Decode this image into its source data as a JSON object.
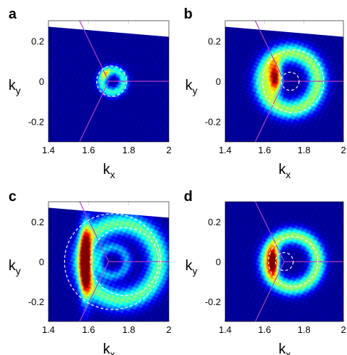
{
  "colors": {
    "background_low": "#00008f",
    "colormap": [
      "#00008f",
      "#0000ff",
      "#0080ff",
      "#00ffff",
      "#80ff80",
      "#ffff00",
      "#ff8000",
      "#ff0000",
      "#800000"
    ],
    "zone_boundary_line": "#b040c0",
    "dashed_circle": "#ffffff",
    "dotted_grid": "#777777"
  },
  "chart_data": [
    {
      "panel": "a",
      "type": "heatmap",
      "xlabel": "k",
      "xlabel_sub": "x",
      "ylabel": "k",
      "ylabel_sub": "y",
      "xlim": [
        1.4,
        2
      ],
      "ylim": [
        -0.3,
        0.3
      ],
      "xticks": [
        "1.4",
        "1.6",
        "1.8",
        "2"
      ],
      "yticks": [
        "0.2",
        "0",
        "-0.2"
      ],
      "zone_boundary_center": [
        1.7,
        0
      ],
      "masked_corner": {
        "left_y": 0.27,
        "right_y": 0.22
      },
      "intensity_features": [
        {
          "kind": "ring",
          "cx": 1.72,
          "cy": 0.0,
          "r": 0.055,
          "width": 0.018,
          "amplitude": 0.45
        },
        {
          "kind": "spot",
          "cx": 1.685,
          "cy": 0.035,
          "sx": 0.015,
          "sy": 0.02,
          "amplitude": 0.3
        }
      ],
      "dashed_circles": [
        {
          "cx": 1.715,
          "cy": 0.0,
          "r": 0.075
        }
      ]
    },
    {
      "panel": "b",
      "type": "heatmap",
      "xlabel": "k",
      "xlabel_sub": "x",
      "ylabel": "k",
      "ylabel_sub": "y",
      "xlim": [
        1.4,
        2
      ],
      "ylim": [
        -0.3,
        0.3
      ],
      "xticks": [
        "1.4",
        "1.6",
        "1.8",
        "2"
      ],
      "yticks": [
        "0.2",
        "0",
        "-0.2"
      ],
      "zone_boundary_center": [
        1.7,
        0
      ],
      "masked_corner": {
        "left_y": 0.27,
        "right_y": 0.22
      },
      "intensity_features": [
        {
          "kind": "ring",
          "cx": 1.73,
          "cy": 0.0,
          "r": 0.14,
          "width": 0.035,
          "amplitude": 0.55
        },
        {
          "kind": "spot",
          "cx": 1.655,
          "cy": 0.015,
          "sx": 0.022,
          "sy": 0.05,
          "amplitude": 1.0
        }
      ],
      "dashed_circles": [
        {
          "cx": 1.745,
          "cy": 0.0,
          "r": 0.155
        },
        {
          "cx": 1.73,
          "cy": 0.0,
          "r": 0.045
        }
      ]
    },
    {
      "panel": "c",
      "type": "heatmap",
      "xlabel": "k",
      "xlabel_sub": "x",
      "ylabel": "k",
      "ylabel_sub": "y",
      "xlim": [
        1.4,
        2
      ],
      "ylim": [
        -0.3,
        0.3
      ],
      "xticks": [
        "1.4",
        "1.6",
        "1.8",
        "2"
      ],
      "yticks": [
        "0.2",
        "0",
        "-0.2"
      ],
      "zone_boundary_center": [
        1.7,
        0
      ],
      "masked_corner": {
        "left_y": 0.27,
        "right_y": 0.22
      },
      "intensity_features": [
        {
          "kind": "ring",
          "cx": 1.76,
          "cy": 0.0,
          "r": 0.19,
          "width": 0.04,
          "amplitude": 0.5
        },
        {
          "kind": "spot",
          "cx": 1.585,
          "cy": 0.0,
          "sx": 0.02,
          "sy": 0.13,
          "amplitude": 1.0
        },
        {
          "kind": "ring",
          "cx": 1.72,
          "cy": 0.0,
          "r": 0.07,
          "width": 0.02,
          "amplitude": 0.3
        }
      ],
      "dashed_circles": [
        {
          "cx": 1.72,
          "cy": 0.0,
          "r": 0.24
        },
        {
          "cx": 1.78,
          "cy": 0.0,
          "r": 0.17
        }
      ]
    },
    {
      "panel": "d",
      "type": "heatmap",
      "xlabel": "k",
      "xlabel_sub": "x",
      "ylabel": "k",
      "ylabel_sub": "y",
      "xlim": [
        1.4,
        2
      ],
      "ylim": [
        -0.3,
        0.3
      ],
      "xticks": [
        "1.4",
        "1.6",
        "1.8",
        "2"
      ],
      "yticks": [
        "0.2",
        "0",
        "-0.2"
      ],
      "zone_boundary_center": [
        1.7,
        0
      ],
      "masked_corner": null,
      "intensity_features": [
        {
          "kind": "ring",
          "cx": 1.74,
          "cy": 0.0,
          "r": 0.13,
          "width": 0.03,
          "amplitude": 0.55
        },
        {
          "kind": "spot",
          "cx": 1.645,
          "cy": 0.0,
          "sx": 0.02,
          "sy": 0.045,
          "amplitude": 1.0
        }
      ],
      "dashed_circles": [
        {
          "cx": 1.745,
          "cy": 0.0,
          "r": 0.125
        },
        {
          "cx": 1.7,
          "cy": 0.0,
          "r": 0.045
        }
      ]
    }
  ]
}
